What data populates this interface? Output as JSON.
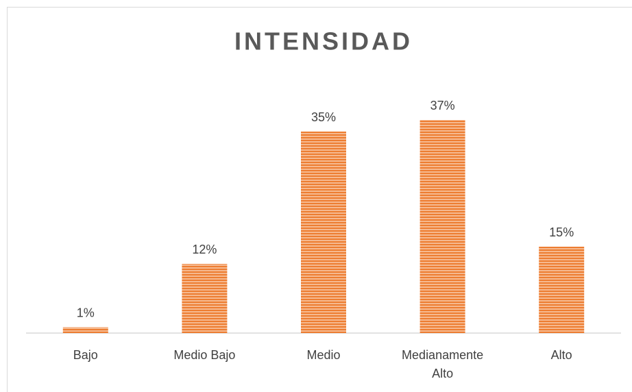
{
  "chart_data": {
    "type": "bar",
    "title": "INTENSIDAD",
    "categories": [
      "Bajo",
      "Medio Bajo",
      "Medio",
      "Medianamente Alto",
      "Alto"
    ],
    "values": [
      1,
      12,
      35,
      37,
      15
    ],
    "value_labels": [
      "1%",
      "12%",
      "35%",
      "37%",
      "15%"
    ],
    "color": "#ed7d31"
  }
}
